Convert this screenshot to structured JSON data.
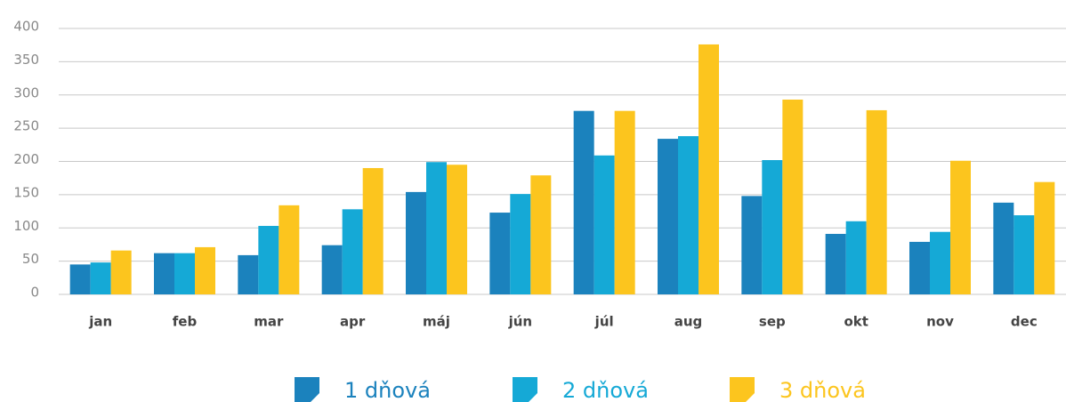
{
  "chart_data": {
    "type": "bar",
    "categories": [
      "jan",
      "feb",
      "mar",
      "apr",
      "máj",
      "jún",
      "júl",
      "aug",
      "sep",
      "okt",
      "nov",
      "dec"
    ],
    "series": [
      {
        "name": "1 dňová",
        "color": "#1b82bd",
        "values": [
          45,
          62,
          59,
          74,
          154,
          123,
          276,
          234,
          148,
          91,
          79,
          138
        ]
      },
      {
        "name": "2 dňová",
        "color": "#15a9d6",
        "values": [
          48,
          62,
          103,
          128,
          199,
          151,
          209,
          238,
          202,
          110,
          94,
          119
        ]
      },
      {
        "name": "3 dňová",
        "color": "#fcc51e",
        "values": [
          66,
          71,
          134,
          190,
          195,
          179,
          276,
          376,
          293,
          277,
          201,
          169
        ]
      }
    ],
    "ylim": [
      0,
      400
    ],
    "yticks": [
      0,
      50,
      100,
      150,
      200,
      250,
      300,
      350,
      400
    ],
    "grid": true
  }
}
